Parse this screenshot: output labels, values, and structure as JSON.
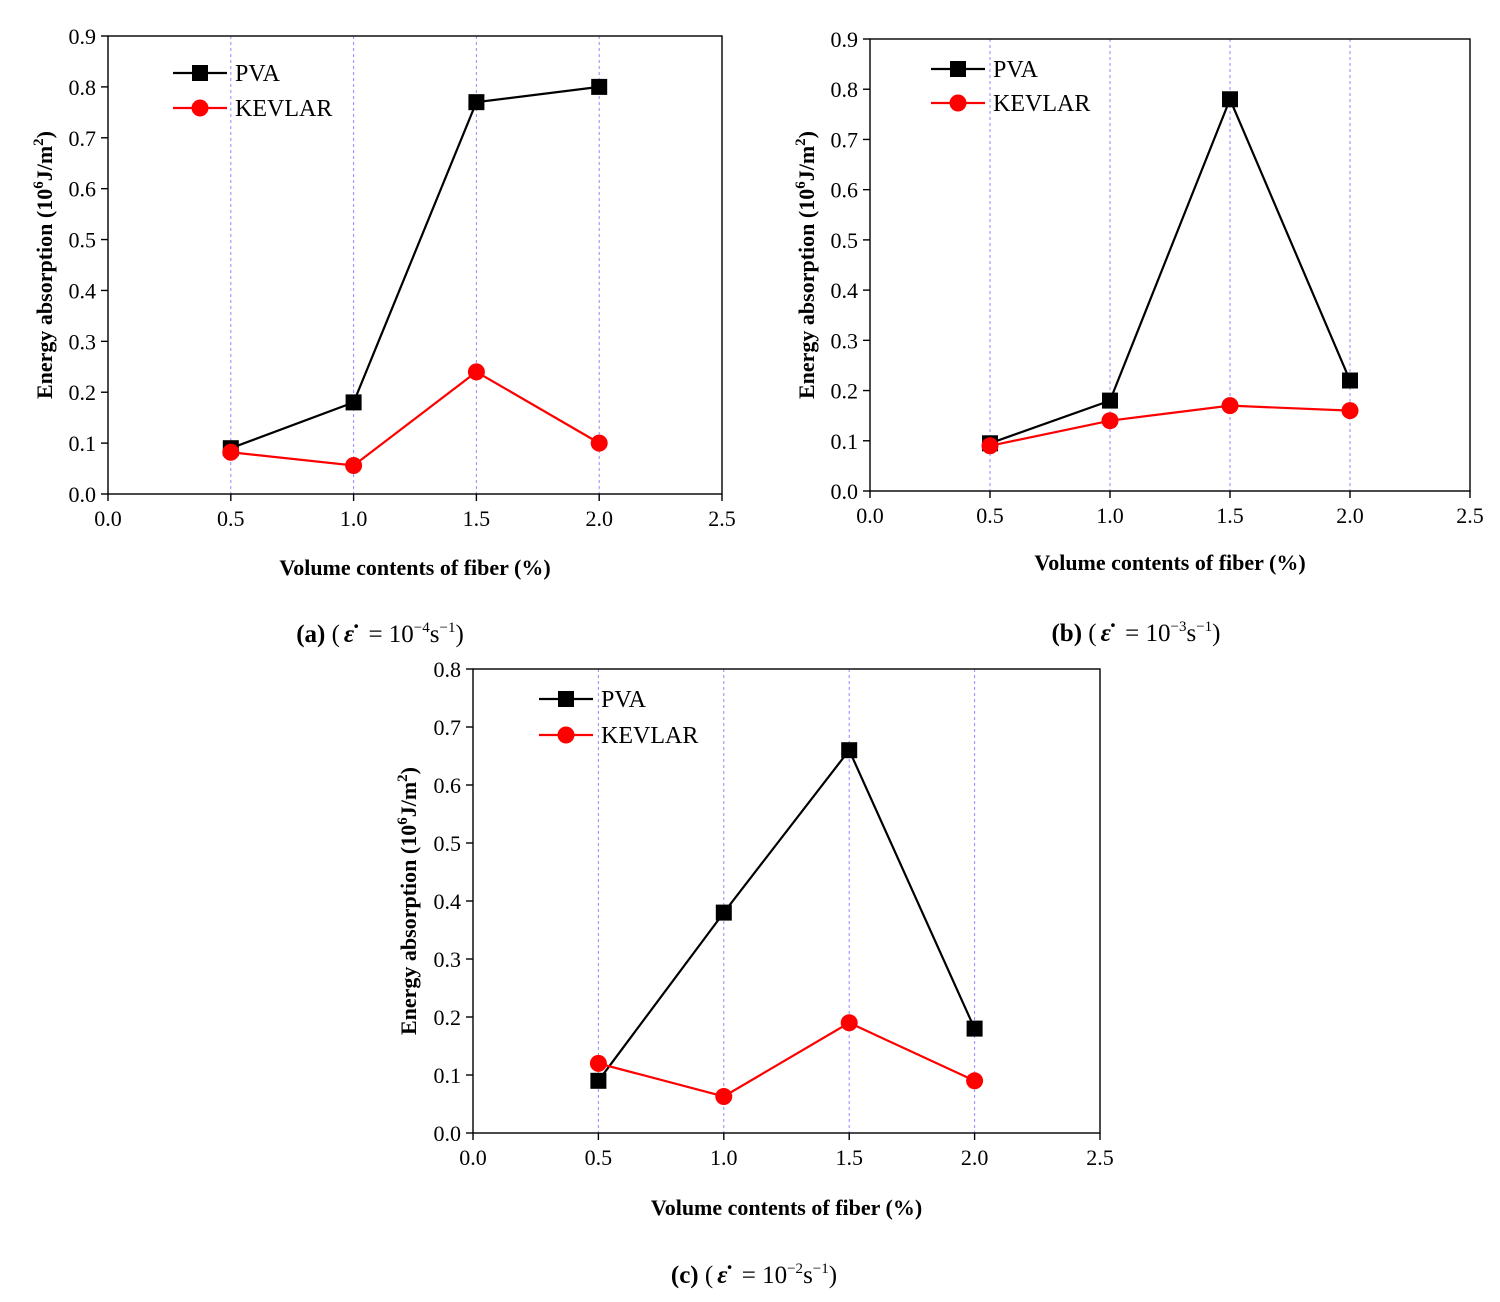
{
  "chart_data": [
    {
      "type": "line",
      "panel": "a",
      "xlabel": "Volume contents of fiber (%)",
      "ylabel_main": "Energy absorption (10",
      "ylabel_exp": "6",
      "ylabel_unit": "J/m",
      "ylabel_unit_exp": "2",
      "ylabel_close": ")",
      "xlim": [
        0.0,
        2.5
      ],
      "ylim": [
        0.0,
        0.9
      ],
      "xticks": [
        "0.0",
        "0.5",
        "1.0",
        "1.5",
        "2.0",
        "2.5"
      ],
      "yticks": [
        "0.0",
        "0.1",
        "0.2",
        "0.3",
        "0.4",
        "0.5",
        "0.6",
        "0.7",
        "0.8",
        "0.9"
      ],
      "x": [
        0.5,
        1.0,
        1.5,
        2.0
      ],
      "series": [
        {
          "name": "PVA",
          "color": "#000000",
          "marker": "square",
          "values": [
            0.09,
            0.18,
            0.77,
            0.8
          ]
        },
        {
          "name": "KEVLAR",
          "color": "#ff0000",
          "marker": "circle",
          "values": [
            0.082,
            0.056,
            0.24,
            0.1
          ]
        }
      ],
      "caption": {
        "letter": "(a)",
        "open": "(",
        "eps": "ε̇",
        "eq": " = 10",
        "exp": "−4",
        "unit": "s",
        "unit_exp": "−1",
        "close": ")"
      }
    },
    {
      "type": "line",
      "panel": "b",
      "xlabel": "Volume contents of fiber (%)",
      "ylabel_main": "Energy absorption (10",
      "ylabel_exp": "6",
      "ylabel_unit": "J/m",
      "ylabel_unit_exp": "2",
      "ylabel_close": ")",
      "xlim": [
        0.0,
        2.5
      ],
      "ylim": [
        0.0,
        0.9
      ],
      "xticks": [
        "0.0",
        "0.5",
        "1.0",
        "1.5",
        "2.0",
        "2.5"
      ],
      "yticks": [
        "0.0",
        "0.1",
        "0.2",
        "0.3",
        "0.4",
        "0.5",
        "0.6",
        "0.7",
        "0.8",
        "0.9"
      ],
      "x": [
        0.5,
        1.0,
        1.5,
        2.0
      ],
      "series": [
        {
          "name": "PVA",
          "color": "#000000",
          "marker": "square",
          "values": [
            0.095,
            0.18,
            0.78,
            0.22
          ]
        },
        {
          "name": "KEVLAR",
          "color": "#ff0000",
          "marker": "circle",
          "values": [
            0.09,
            0.14,
            0.17,
            0.16
          ]
        }
      ],
      "caption": {
        "letter": "(b)",
        "open": "(",
        "eps": "ε̇",
        "eq": " = 10",
        "exp": "−3",
        "unit": "s",
        "unit_exp": "−1",
        "close": ")"
      }
    },
    {
      "type": "line",
      "panel": "c",
      "xlabel": "Volume contents of fiber (%)",
      "ylabel_main": "Energy absorption (10",
      "ylabel_exp": "6",
      "ylabel_unit": "J/m",
      "ylabel_unit_exp": "2",
      "ylabel_close": ")",
      "xlim": [
        0.0,
        2.5
      ],
      "ylim": [
        0.0,
        0.8
      ],
      "xticks": [
        "0.0",
        "0.5",
        "1.0",
        "1.5",
        "2.0",
        "2.5"
      ],
      "yticks": [
        "0.0",
        "0.1",
        "0.2",
        "0.3",
        "0.4",
        "0.5",
        "0.6",
        "0.7",
        "0.8"
      ],
      "x": [
        0.5,
        1.0,
        1.5,
        2.0
      ],
      "series": [
        {
          "name": "PVA",
          "color": "#000000",
          "marker": "square",
          "values": [
            0.09,
            0.38,
            0.66,
            0.18
          ]
        },
        {
          "name": "KEVLAR",
          "color": "#ff0000",
          "marker": "circle",
          "values": [
            0.12,
            0.063,
            0.19,
            0.09
          ]
        }
      ],
      "caption": {
        "letter": "(c)",
        "open": "(",
        "eps": "ε̇",
        "eq": " = 10",
        "exp": "−2",
        "unit": "s",
        "unit_exp": "−1",
        "close": ")"
      }
    }
  ],
  "colors": {
    "gridline": "#8c8cff",
    "axis": "#000000"
  }
}
